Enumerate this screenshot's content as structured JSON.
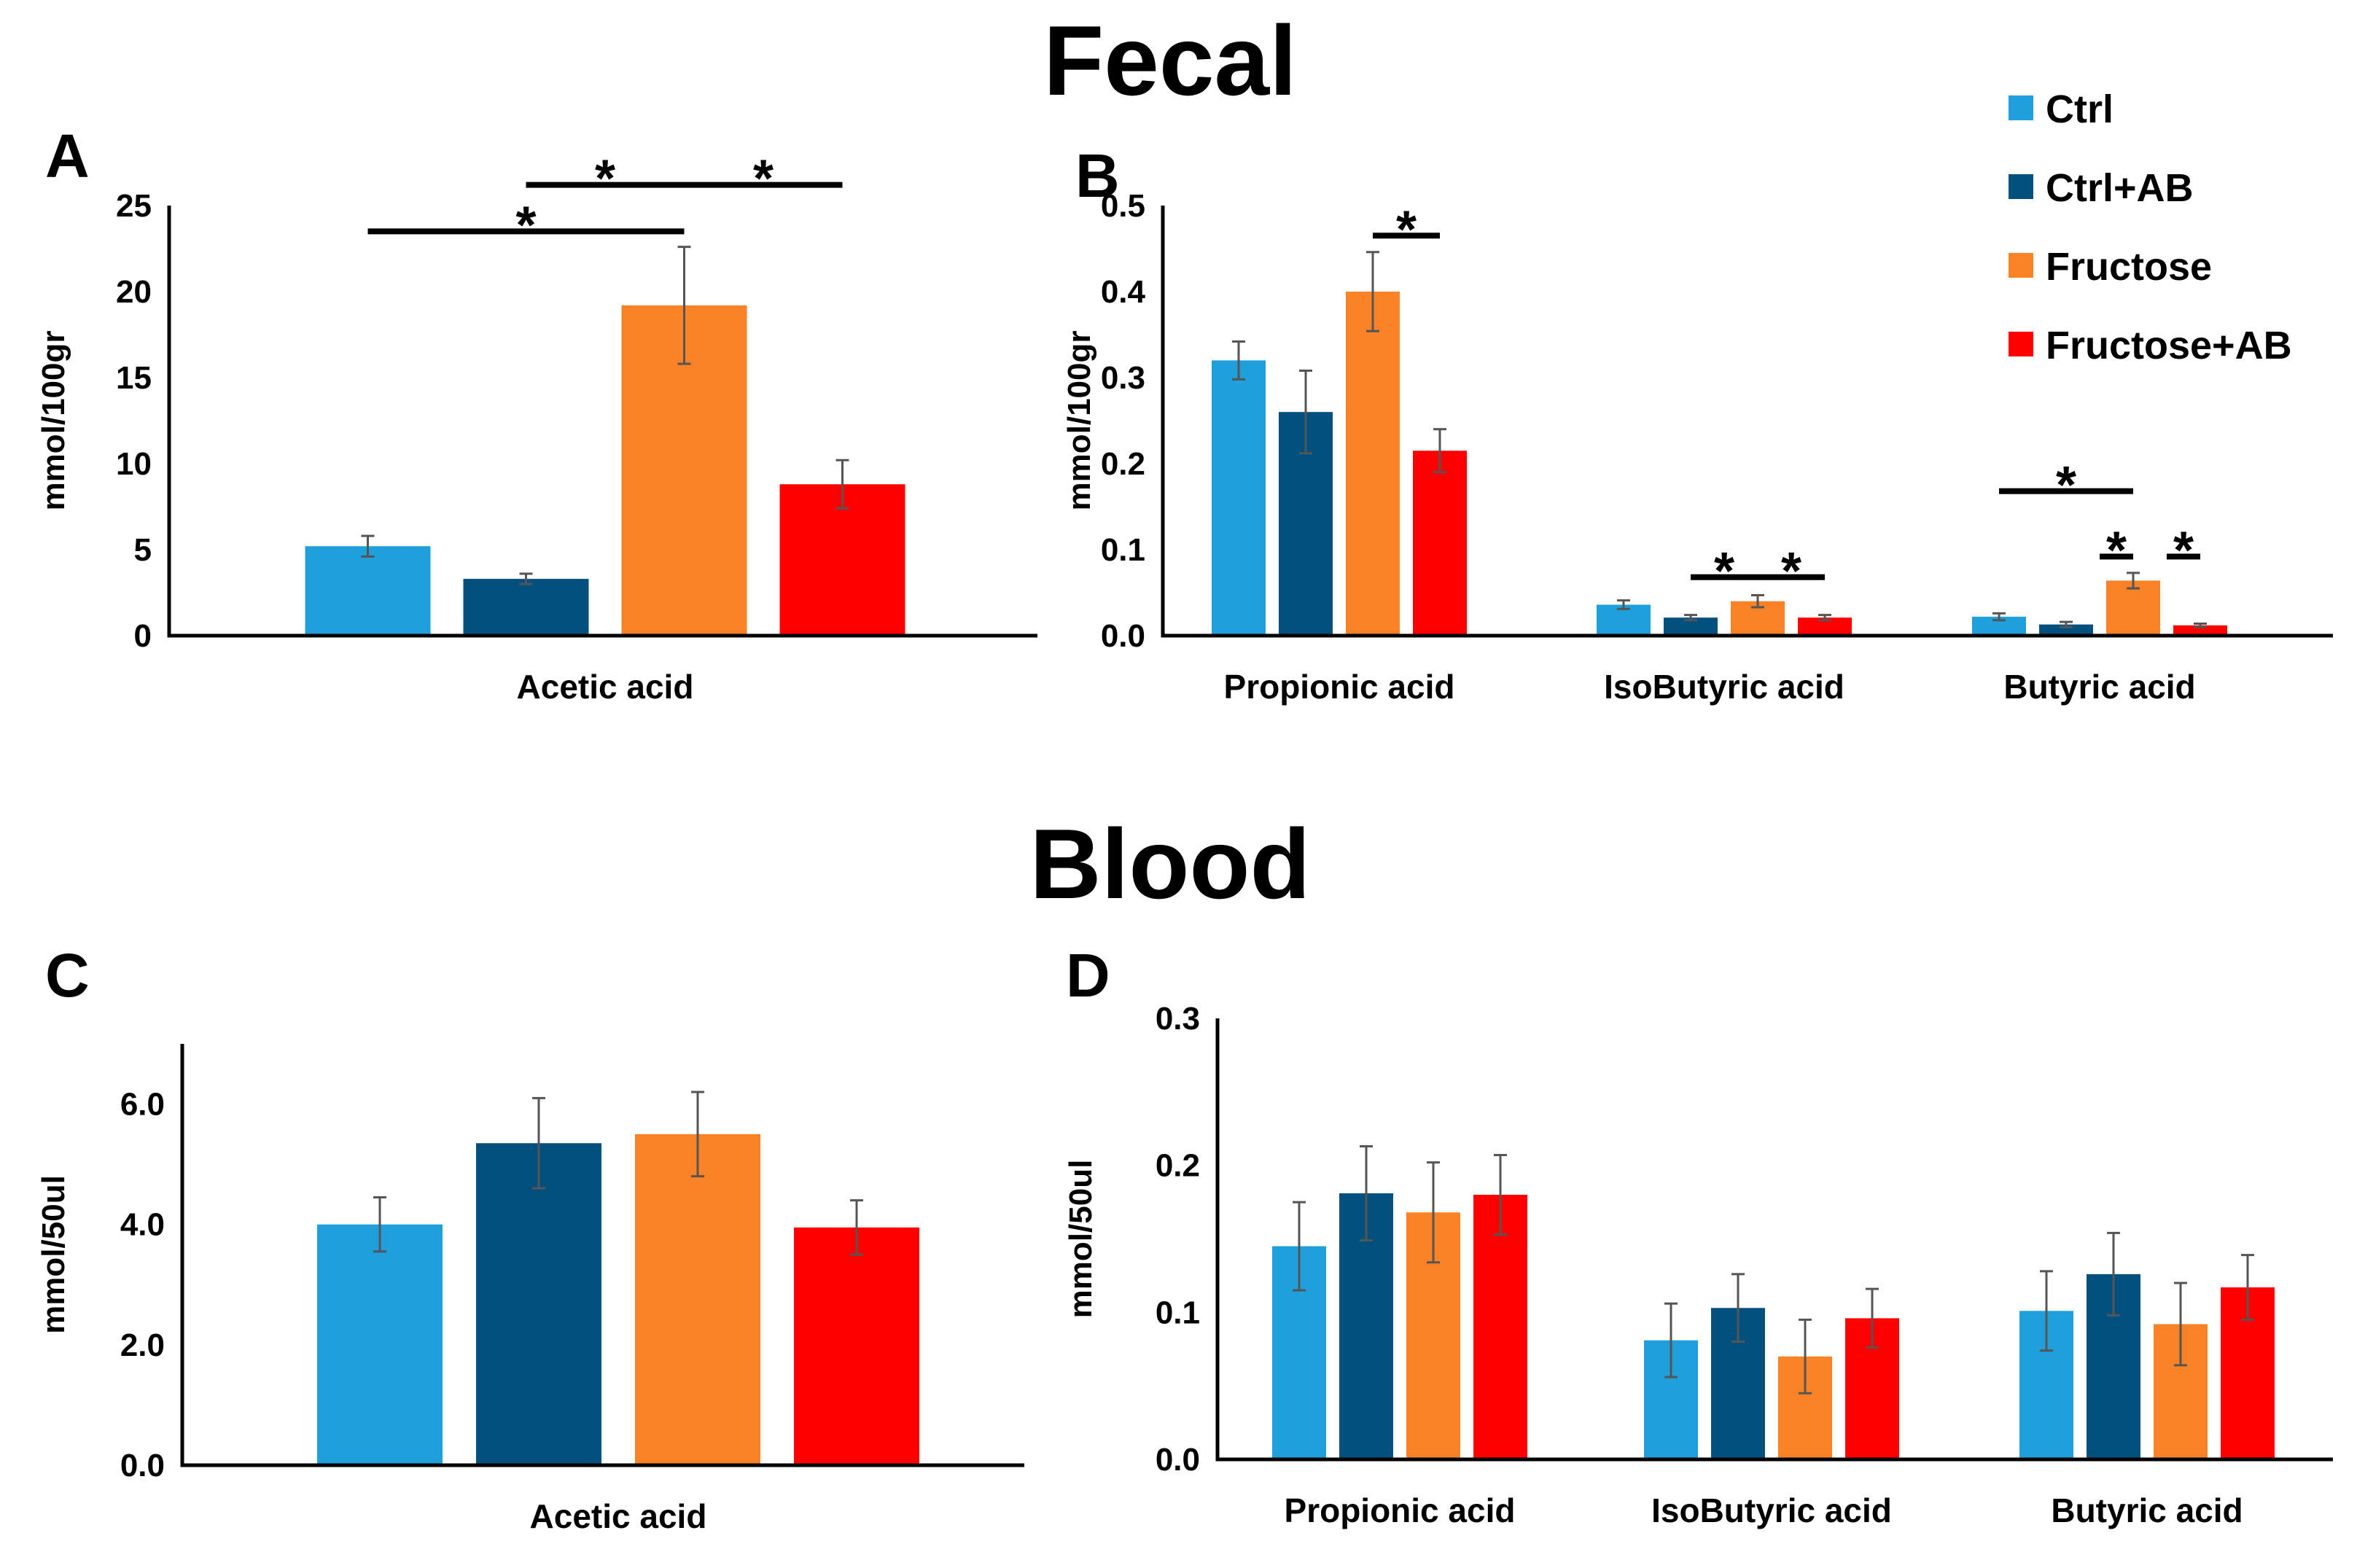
{
  "sections": {
    "fecal": "Fecal",
    "blood": "Blood"
  },
  "legend": [
    {
      "label": "Ctrl",
      "color": "#1f9fdb"
    },
    {
      "label": "Ctrl+AB",
      "color": "#034f7e"
    },
    {
      "label": "Fructose",
      "color": "#f98226"
    },
    {
      "label": "Fructose+AB",
      "color": "#ff0000"
    }
  ],
  "chart_data": [
    {
      "id": "A",
      "panel_label": "A",
      "type": "bar",
      "ylabel": "mmol/100gr",
      "ylim": [
        0,
        25
      ],
      "yticks": [
        0,
        5,
        10,
        15,
        20,
        25
      ],
      "ytick_labels": [
        "0",
        "5",
        "10",
        "15",
        "20",
        "25"
      ],
      "categories": [
        "Acetic acid"
      ],
      "series": [
        {
          "name": "Ctrl",
          "values": [
            5.2
          ],
          "errors": [
            0.6
          ]
        },
        {
          "name": "Ctrl+AB",
          "values": [
            3.3
          ],
          "errors": [
            0.3
          ]
        },
        {
          "name": "Fructose",
          "values": [
            19.2
          ],
          "errors": [
            3.4
          ]
        },
        {
          "name": "Fructose+AB",
          "values": [
            8.8
          ],
          "errors": [
            1.4
          ]
        }
      ],
      "significance": [
        {
          "category": 0,
          "from": 0,
          "to": 2,
          "level": 23.5,
          "label": "*"
        },
        {
          "category": 0,
          "from": 1,
          "to": 2,
          "level": 26.2,
          "label": "*"
        },
        {
          "category": 0,
          "from": 2,
          "to": 3,
          "level": 26.2,
          "label": "*"
        }
      ]
    },
    {
      "id": "B",
      "panel_label": "B",
      "type": "bar",
      "ylabel": "mmol/100gr",
      "ylim": [
        0,
        0.5
      ],
      "yticks": [
        0,
        0.1,
        0.2,
        0.3,
        0.4,
        0.5
      ],
      "ytick_labels": [
        "0.0",
        "0.1",
        "0.2",
        "0.3",
        "0.4",
        "0.5"
      ],
      "categories": [
        "Propionic acid",
        "IsoButyric acid",
        "Butyric acid"
      ],
      "series": [
        {
          "name": "Ctrl",
          "values": [
            0.32,
            0.036,
            0.022
          ],
          "errors": [
            0.022,
            0.005,
            0.004
          ]
        },
        {
          "name": "Ctrl+AB",
          "values": [
            0.26,
            0.021,
            0.013
          ],
          "errors": [
            0.048,
            0.003,
            0.003
          ]
        },
        {
          "name": "Fructose",
          "values": [
            0.4,
            0.04,
            0.064
          ],
          "errors": [
            0.046,
            0.007,
            0.009
          ]
        },
        {
          "name": "Fructose+AB",
          "values": [
            0.215,
            0.021,
            0.012
          ],
          "errors": [
            0.025,
            0.003,
            0.002
          ]
        }
      ],
      "significance": [
        {
          "category": 0,
          "from": 2,
          "to": 3,
          "level": 0.465,
          "label": "*"
        },
        {
          "category": 1,
          "from": 1,
          "to": 2,
          "level": 0.068,
          "label": "*"
        },
        {
          "category": 1,
          "from": 2,
          "to": 3,
          "level": 0.068,
          "label": "*"
        },
        {
          "category": 2,
          "from": 0,
          "to": 2,
          "level": 0.168,
          "label": "*"
        },
        {
          "category": 2,
          "from": 1.5,
          "to": 2,
          "level": 0.092,
          "label": "*"
        },
        {
          "category": 2,
          "from": 2.5,
          "to": 3,
          "level": 0.092,
          "label": "*"
        }
      ]
    },
    {
      "id": "C",
      "panel_label": "C",
      "type": "bar",
      "ylabel": "mmol/50ul",
      "ylim": [
        0,
        7
      ],
      "yticks": [
        0,
        2,
        4,
        6
      ],
      "ytick_labels": [
        "0.0",
        "2.0",
        "4.0",
        "6.0"
      ],
      "categories": [
        "Acetic acid"
      ],
      "series": [
        {
          "name": "Ctrl",
          "values": [
            4.0
          ],
          "errors": [
            0.45
          ]
        },
        {
          "name": "Ctrl+AB",
          "values": [
            5.35
          ],
          "errors": [
            0.75
          ]
        },
        {
          "name": "Fructose",
          "values": [
            5.5
          ],
          "errors": [
            0.7
          ]
        },
        {
          "name": "Fructose+AB",
          "values": [
            3.95
          ],
          "errors": [
            0.45
          ]
        }
      ],
      "significance": []
    },
    {
      "id": "D",
      "panel_label": "D",
      "type": "bar",
      "ylabel": "mmol/50ul",
      "ylim": [
        0,
        0.3
      ],
      "yticks": [
        0,
        0.1,
        0.2,
        0.3
      ],
      "ytick_labels": [
        "0.0",
        "0.1",
        "0.2",
        "0.3"
      ],
      "categories": [
        "Propionic acid",
        "IsoButyric acid",
        "Butyric acid"
      ],
      "series": [
        {
          "name": "Ctrl",
          "values": [
            0.145,
            0.081,
            0.101
          ],
          "errors": [
            0.03,
            0.025,
            0.027
          ]
        },
        {
          "name": "Ctrl+AB",
          "values": [
            0.181,
            0.103,
            0.126
          ],
          "errors": [
            0.032,
            0.023,
            0.028
          ]
        },
        {
          "name": "Fructose",
          "values": [
            0.168,
            0.07,
            0.092
          ],
          "errors": [
            0.034,
            0.025,
            0.028
          ]
        },
        {
          "name": "Fructose+AB",
          "values": [
            0.18,
            0.096,
            0.117
          ],
          "errors": [
            0.027,
            0.02,
            0.022
          ]
        }
      ],
      "significance": []
    }
  ]
}
